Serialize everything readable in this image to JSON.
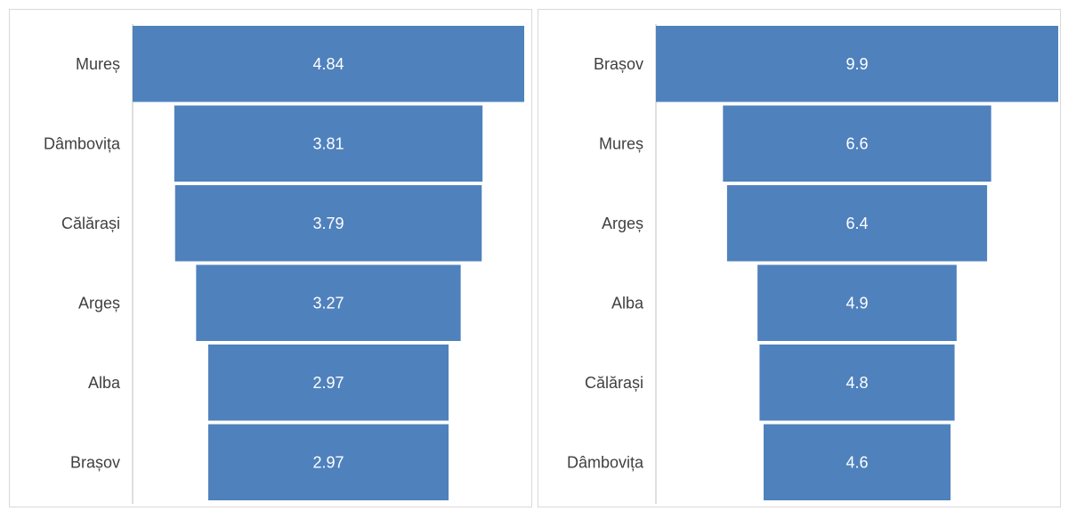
{
  "chart_data": [
    {
      "type": "bar",
      "subtype": "funnel",
      "categories": [
        "Mureș",
        "Dâmbovița",
        "Călărași",
        "Argeș",
        "Alba",
        "Brașov"
      ],
      "values": [
        4.84,
        3.81,
        3.79,
        3.27,
        2.97,
        2.97
      ],
      "value_labels": [
        "4.84",
        "3.81",
        "3.79",
        "3.27",
        "2.97",
        "2.97"
      ],
      "title": "",
      "xlabel": "",
      "ylabel": "",
      "grid": false,
      "legend": "none",
      "colors": {
        "bar": "#4f81bd",
        "label_text": "#ffffff",
        "category_text": "#404040",
        "axis": "#bfbfbf"
      }
    },
    {
      "type": "bar",
      "subtype": "funnel",
      "categories": [
        "Brașov",
        "Mureș",
        "Argeș",
        "Alba",
        "Călărași",
        "Dâmbovița"
      ],
      "values": [
        9.9,
        6.6,
        6.4,
        4.9,
        4.8,
        4.6
      ],
      "value_labels": [
        "9.9",
        "6.6",
        "6.4",
        "4.9",
        "4.8",
        "4.6"
      ],
      "title": "",
      "xlabel": "",
      "ylabel": "",
      "grid": false,
      "legend": "none",
      "colors": {
        "bar": "#4f81bd",
        "label_text": "#ffffff",
        "category_text": "#404040",
        "axis": "#bfbfbf"
      }
    }
  ]
}
